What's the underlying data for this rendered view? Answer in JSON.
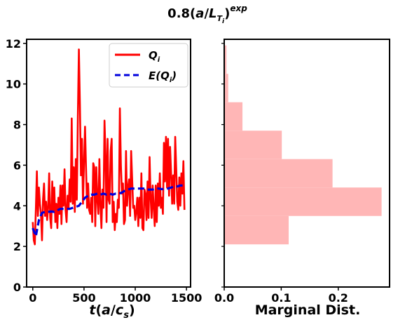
{
  "chart_data": {
    "title": "0.8(a/L_Ti)^exp",
    "colors": {
      "qi": "#ff0000",
      "expectation": "#0000dd",
      "hist": "#ffb6b6"
    },
    "panels": [
      {
        "type": "line",
        "xlabel": "t(a/c_s)",
        "xlim": [
          -60,
          1540
        ],
        "ylim": [
          0,
          12.2
        ],
        "xticks": [
          0,
          500,
          1000,
          1500
        ],
        "yticks": [
          0,
          2,
          4,
          6,
          8,
          10,
          12
        ],
        "legend_position": "top-right",
        "series": [
          {
            "name": "Q_i",
            "style": "solid",
            "x": [
              0,
              10,
              20,
              30,
              40,
              50,
              60,
              70,
              80,
              90,
              100,
              110,
              120,
              130,
              140,
              150,
              160,
              170,
              180,
              190,
              200,
              210,
              220,
              230,
              240,
              250,
              260,
              270,
              280,
              290,
              300,
              310,
              320,
              330,
              340,
              350,
              360,
              370,
              380,
              390,
              400,
              410,
              420,
              430,
              440,
              450,
              460,
              470,
              480,
              490,
              500,
              510,
              520,
              530,
              540,
              550,
              560,
              570,
              580,
              590,
              600,
              610,
              620,
              630,
              640,
              650,
              660,
              670,
              680,
              690,
              700,
              710,
              720,
              730,
              740,
              750,
              760,
              770,
              780,
              790,
              800,
              810,
              820,
              830,
              840,
              850,
              860,
              870,
              880,
              890,
              900,
              910,
              920,
              930,
              940,
              950,
              960,
              970,
              980,
              990,
              1000,
              1010,
              1020,
              1030,
              1040,
              1050,
              1060,
              1070,
              1080,
              1090,
              1100,
              1110,
              1120,
              1130,
              1140,
              1150,
              1160,
              1170,
              1180,
              1190,
              1200,
              1210,
              1220,
              1230,
              1240,
              1250,
              1260,
              1270,
              1280,
              1290,
              1300,
              1310,
              1320,
              1330,
              1340,
              1350,
              1360,
              1370,
              1380,
              1390,
              1400,
              1410,
              1420,
              1430,
              1440,
              1450,
              1460,
              1470,
              1480
            ],
            "values": [
              3.2,
              2.3,
              2.1,
              3.8,
              5.7,
              3.5,
              4.9,
              4.1,
              3.6,
              2.3,
              4.3,
              5.1,
              3.5,
              4.2,
              3.3,
              3.9,
              5.6,
              3.4,
              2.9,
              5.2,
              3.7,
              4.9,
              3.2,
              4.1,
              2.9,
              4.4,
              3.6,
              5.0,
              3.1,
              5.0,
              4.0,
              5.8,
              3.8,
              3.2,
              4.5,
              3.9,
              5.3,
              4.2,
              8.3,
              4.1,
              5.9,
              3.7,
              6.3,
              4.3,
              8.4,
              11.7,
              9.0,
              5.5,
              7.3,
              4.1,
              6.1,
              7.9,
              5.8,
              3.9,
              5.1,
              3.8,
              3.6,
              4.4,
              3.2,
              6.1,
              5.9,
              3.0,
              5.9,
              4.3,
              3.6,
              6.3,
              4.0,
              2.9,
              4.8,
              3.9,
              8.2,
              6.5,
              3.2,
              7.3,
              4.3,
              4.1,
              6.7,
              7.3,
              3.2,
              4.2,
              2.8,
              3.6,
              3.2,
              4.3,
              3.9,
              8.8,
              6.0,
              4.6,
              5.1,
              3.1,
              3.3,
              6.7,
              4.0,
              4.9,
              5.3,
              3.5,
              6.7,
              5.3,
              3.9,
              4.0,
              3.3,
              3.7,
              4.4,
              3.0,
              4.4,
              3.4,
              5.6,
              2.9,
              2.8,
              4.8,
              4.6,
              3.3,
              5.2,
              3.4,
              6.4,
              4.4,
              3.4,
              5.0,
              3.9,
              3.0,
              5.0,
              3.2,
              5.1,
              4.0,
              5.6,
              3.9,
              4.4,
              3.6,
              7.1,
              5.2,
              7.4,
              4.9,
              7.3,
              4.5,
              6.9,
              5.6,
              4.1,
              5.5,
              4.1,
              7.4,
              5.8,
              4.2,
              3.8,
              5.4,
              4.0,
              5.6,
              4.6,
              6.2,
              3.8
            ]
          },
          {
            "name": "E(Q_i)",
            "style": "dashed",
            "x": [
              0,
              30,
              60,
              90,
              120,
              150,
              180,
              210,
              240,
              270,
              300,
              330,
              360,
              390,
              420,
              450,
              480,
              510,
              540,
              570,
              600,
              630,
              660,
              690,
              720,
              750,
              780,
              810,
              840,
              870,
              900,
              930,
              960,
              990,
              1020,
              1050,
              1080,
              1110,
              1140,
              1170,
              1200,
              1230,
              1260,
              1290,
              1320,
              1350,
              1380,
              1410,
              1440,
              1470,
              1480
            ],
            "values": [
              2.9,
              2.5,
              3.3,
              3.65,
              3.7,
              3.7,
              3.72,
              3.7,
              3.78,
              3.85,
              3.85,
              3.85,
              3.85,
              3.9,
              3.95,
              4.0,
              4.2,
              4.4,
              4.5,
              4.55,
              4.55,
              4.6,
              4.55,
              4.6,
              4.55,
              4.6,
              4.55,
              4.6,
              4.6,
              4.65,
              4.75,
              4.8,
              4.85,
              4.85,
              4.85,
              4.85,
              4.85,
              4.8,
              4.8,
              4.8,
              4.85,
              4.85,
              4.82,
              4.85,
              4.85,
              4.9,
              4.95,
              4.95,
              5.0,
              5.0,
              4.98
            ]
          }
        ]
      },
      {
        "type": "bar",
        "orientation": "horizontal",
        "xlabel": "Marginal Dist.",
        "xlim": [
          0,
          0.29
        ],
        "ylim": [
          0,
          12.2
        ],
        "xticks": [
          "0.0",
          "0.1",
          "0.2"
        ],
        "xtick_values": [
          0,
          0.1,
          0.2
        ],
        "bins": [
          {
            "from": 2.1,
            "to": 3.5,
            "value": 0.113
          },
          {
            "from": 3.5,
            "to": 4.9,
            "value": 0.276
          },
          {
            "from": 4.9,
            "to": 6.3,
            "value": 0.19
          },
          {
            "from": 6.3,
            "to": 7.7,
            "value": 0.101
          },
          {
            "from": 7.7,
            "to": 9.1,
            "value": 0.032
          },
          {
            "from": 9.1,
            "to": 10.5,
            "value": 0.007
          },
          {
            "from": 10.5,
            "to": 11.9,
            "value": 0.004
          }
        ]
      }
    ]
  }
}
